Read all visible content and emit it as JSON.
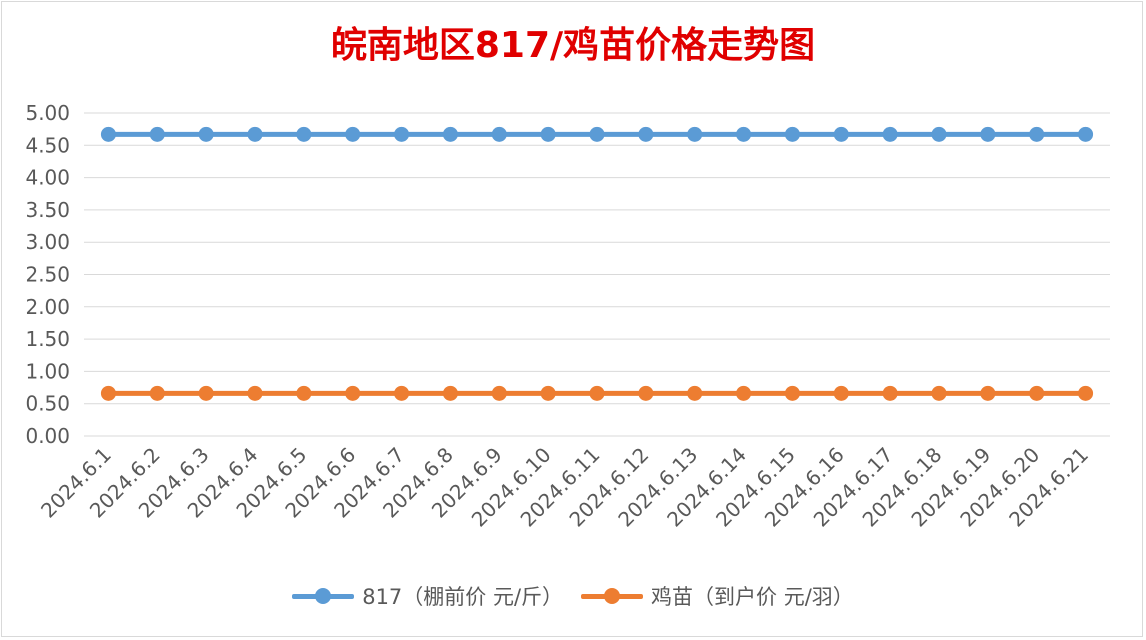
{
  "chart_data": {
    "type": "line",
    "title": "皖南地区817/鸡苗价格走势图",
    "categories": [
      "2024.6.1",
      "2024.6.2",
      "2024.6.3",
      "2024.6.4",
      "2024.6.5",
      "2024.6.6",
      "2024.6.7",
      "2024.6.8",
      "2024.6.9",
      "2024.6.10",
      "2024.6.11",
      "2024.6.12",
      "2024.6.13",
      "2024.6.14",
      "2024.6.15",
      "2024.6.16",
      "2024.6.17",
      "2024.6.18",
      "2024.6.19",
      "2024.6.20",
      "2024.6.21"
    ],
    "y_ticks": [
      "0.00",
      "0.50",
      "1.00",
      "1.50",
      "2.00",
      "2.50",
      "3.00",
      "3.50",
      "4.00",
      "4.50",
      "5.00"
    ],
    "ylim": [
      0,
      5
    ],
    "grid": true,
    "legend_position": "bottom",
    "series": [
      {
        "name": "817（棚前价 元/斤）",
        "color": "#5b9bd5",
        "values": [
          4.67,
          4.67,
          4.67,
          4.67,
          4.67,
          4.67,
          4.67,
          4.67,
          4.67,
          4.67,
          4.67,
          4.67,
          4.67,
          4.67,
          4.67,
          4.67,
          4.67,
          4.67,
          4.67,
          4.67,
          4.67
        ]
      },
      {
        "name": "鸡苗（到户价 元/羽）",
        "color": "#ed7d31",
        "values": [
          0.66,
          0.66,
          0.66,
          0.66,
          0.66,
          0.66,
          0.66,
          0.66,
          0.66,
          0.66,
          0.66,
          0.66,
          0.66,
          0.66,
          0.66,
          0.66,
          0.66,
          0.66,
          0.66,
          0.66,
          0.66
        ]
      }
    ]
  }
}
